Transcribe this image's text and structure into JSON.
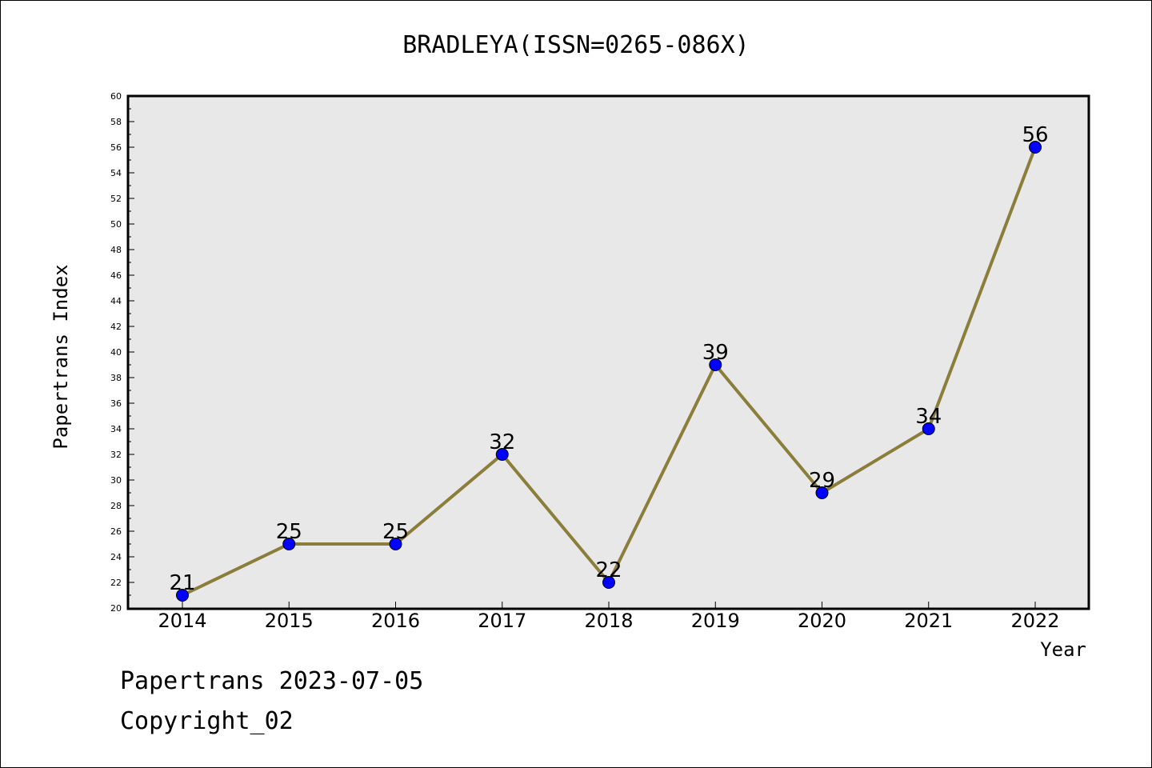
{
  "chart_data": {
    "type": "line",
    "title": "BRADLEYA(ISSN=0265-086X)",
    "xlabel": "Year",
    "ylabel": "Papertrans Index",
    "categories": [
      "2014",
      "2015",
      "2016",
      "2017",
      "2018",
      "2019",
      "2020",
      "2021",
      "2022"
    ],
    "series": [
      {
        "values": [
          21,
          25,
          25,
          32,
          22,
          39,
          29,
          34,
          56
        ]
      }
    ],
    "ylim": [
      20,
      60
    ],
    "ytick_step": 2,
    "grid": false,
    "line_color": "#8B7D3A",
    "marker_color": "#0000FF",
    "plot_background": "#E8E8E8"
  },
  "footer": {
    "line1": "Papertrans 2023-07-05",
    "line2": "Copyright_02"
  }
}
